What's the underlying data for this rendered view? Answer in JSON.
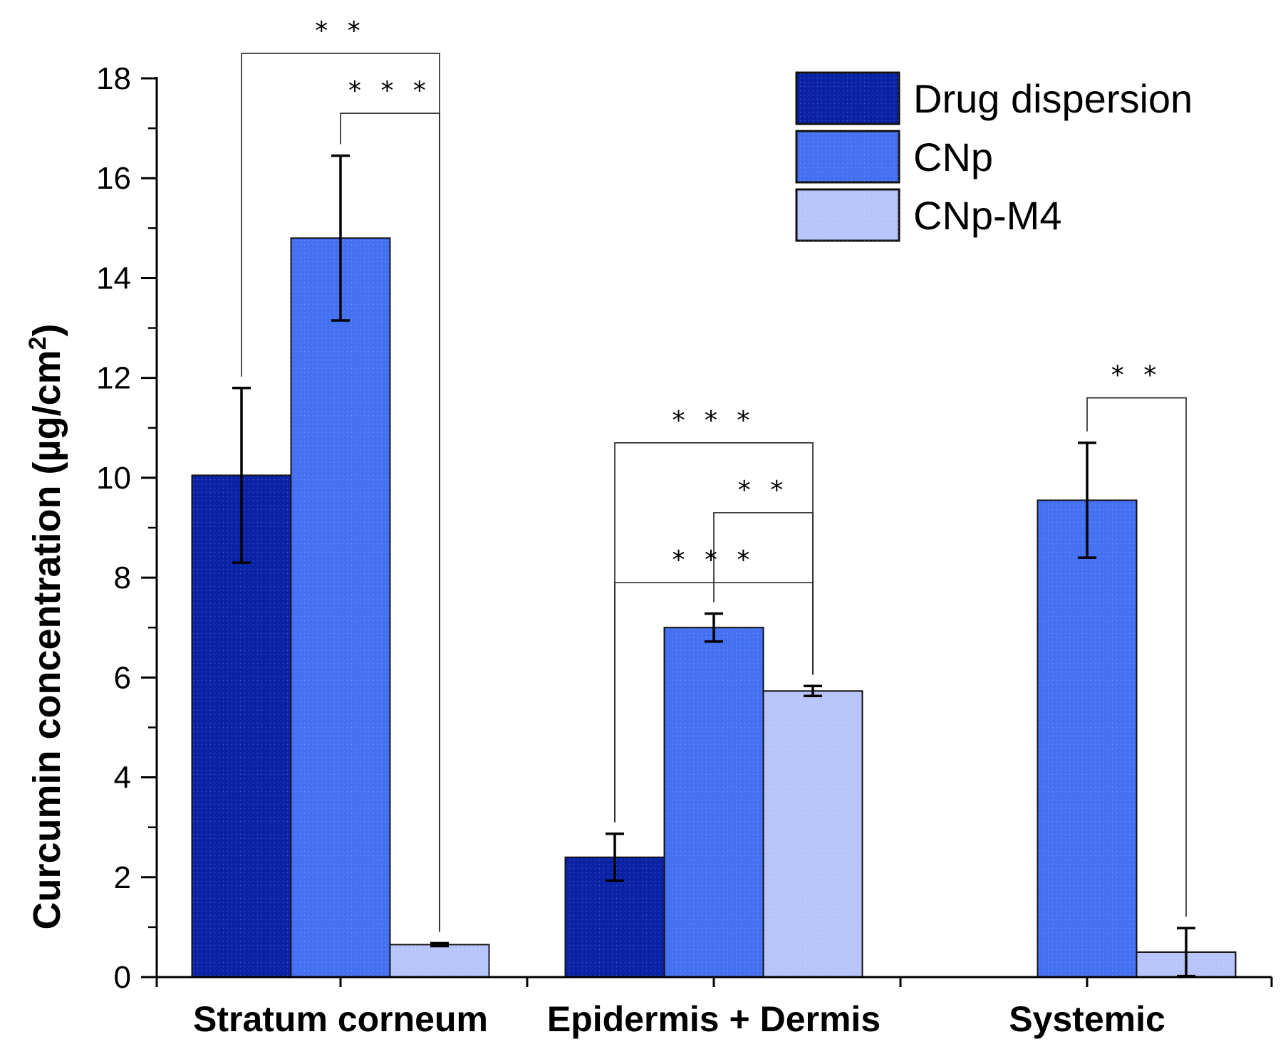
{
  "chart_data": {
    "type": "bar",
    "ylabel": "Curcumin concentration (µg/cm",
    "ylabel_sup": "2",
    "ylabel_end": ")",
    "xlabel": "",
    "ylim": [
      0,
      18
    ],
    "yticks": [
      0,
      2,
      4,
      6,
      8,
      10,
      12,
      14,
      16,
      18
    ],
    "categories": [
      "Stratum corneum",
      "Epidermis + Dermis",
      "Systemic"
    ],
    "series": [
      {
        "name": "Drug dispersion",
        "color": "#0a23a6",
        "values": [
          10.05,
          2.4,
          null
        ],
        "errors": [
          1.75,
          0.47,
          null
        ]
      },
      {
        "name": "CNp",
        "color": "#4470f2",
        "values": [
          14.8,
          7.0,
          9.55
        ],
        "errors": [
          1.65,
          0.28,
          1.15
        ]
      },
      {
        "name": "CNp-M4",
        "color": "#b8c5fb",
        "values": [
          0.65,
          5.73,
          0.5
        ],
        "errors": [
          0.03,
          0.1,
          0.48
        ]
      }
    ],
    "legend": {
      "position": "top-right",
      "entries": [
        "Drug dispersion",
        "CNp",
        "CNp-M4"
      ]
    },
    "significance": [
      {
        "label": "* *",
        "category": 0,
        "from_series": 0,
        "to_series": 2,
        "line_value": 18.5
      },
      {
        "label": "* * *",
        "category": 0,
        "from_series": 1,
        "to_series": 2,
        "line_value": 17.3
      },
      {
        "label": "* * *",
        "category": 1,
        "from_series": 0,
        "to_series": 2,
        "line_value": 10.7
      },
      {
        "label": "* *",
        "category": 1,
        "from_series": 1,
        "to_series": 2,
        "line_value": 9.3
      },
      {
        "label": "* * *",
        "category": 1,
        "from_series": 0,
        "to_series": 2,
        "line_value": 7.9
      },
      {
        "label": "* *",
        "category": 2,
        "from_series": 1,
        "to_series": 2,
        "line_value": 11.6
      }
    ]
  }
}
